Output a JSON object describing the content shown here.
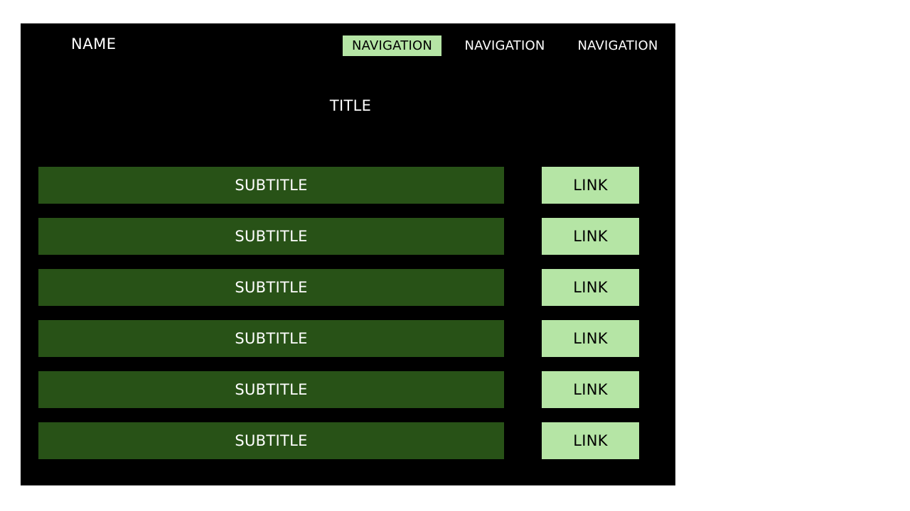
{
  "header": {
    "name": "NAME",
    "nav": [
      {
        "label": "NAVIGATION",
        "active": true
      },
      {
        "label": "NAVIGATION",
        "active": false
      },
      {
        "label": "NAVIGATION",
        "active": false
      }
    ]
  },
  "main": {
    "title": "TITLE",
    "rows": [
      {
        "subtitle": "SUBTITLE",
        "link": "LINK"
      },
      {
        "subtitle": "SUBTITLE",
        "link": "LINK"
      },
      {
        "subtitle": "SUBTITLE",
        "link": "LINK"
      },
      {
        "subtitle": "SUBTITLE",
        "link": "LINK"
      },
      {
        "subtitle": "SUBTITLE",
        "link": "LINK"
      },
      {
        "subtitle": "SUBTITLE",
        "link": "LINK"
      }
    ]
  },
  "colors": {
    "background": "#000000",
    "subtitle_bg": "#285217",
    "accent": "#b5e5a5",
    "text_light": "#ffffff",
    "text_dark": "#000000"
  }
}
